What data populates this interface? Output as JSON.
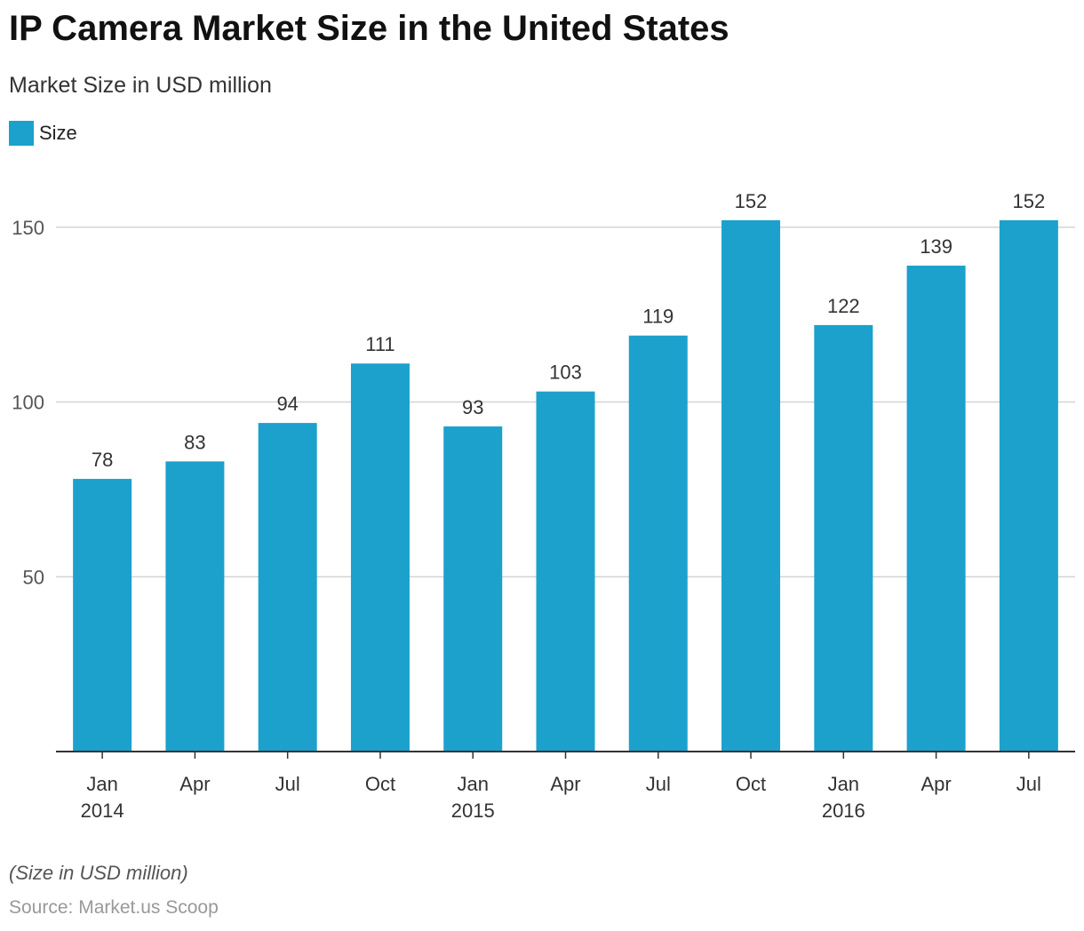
{
  "title": "IP Camera Market Size in the United States",
  "subtitle": "Market Size in USD million",
  "legend": {
    "label": "Size",
    "color": "#1ba1cc"
  },
  "note": "(Size in USD million)",
  "source": "Source: Market.us Scoop",
  "chart_data": {
    "type": "bar",
    "categories": [
      [
        "Jan",
        "2014"
      ],
      [
        "Apr"
      ],
      [
        "Jul"
      ],
      [
        "Oct"
      ],
      [
        "Jan",
        "2015"
      ],
      [
        "Apr"
      ],
      [
        "Jul"
      ],
      [
        "Oct"
      ],
      [
        "Jan",
        "2016"
      ],
      [
        "Apr"
      ],
      [
        "Jul"
      ]
    ],
    "series": [
      {
        "name": "Size",
        "color": "#1ba1cc",
        "values": [
          78,
          83,
          94,
          111,
          93,
          103,
          119,
          152,
          122,
          139,
          152
        ]
      }
    ],
    "ylim": [
      0,
      160
    ],
    "yticks": [
      50,
      100,
      150
    ],
    "grid": true,
    "legend_position": "top-left",
    "data_labels": true
  }
}
